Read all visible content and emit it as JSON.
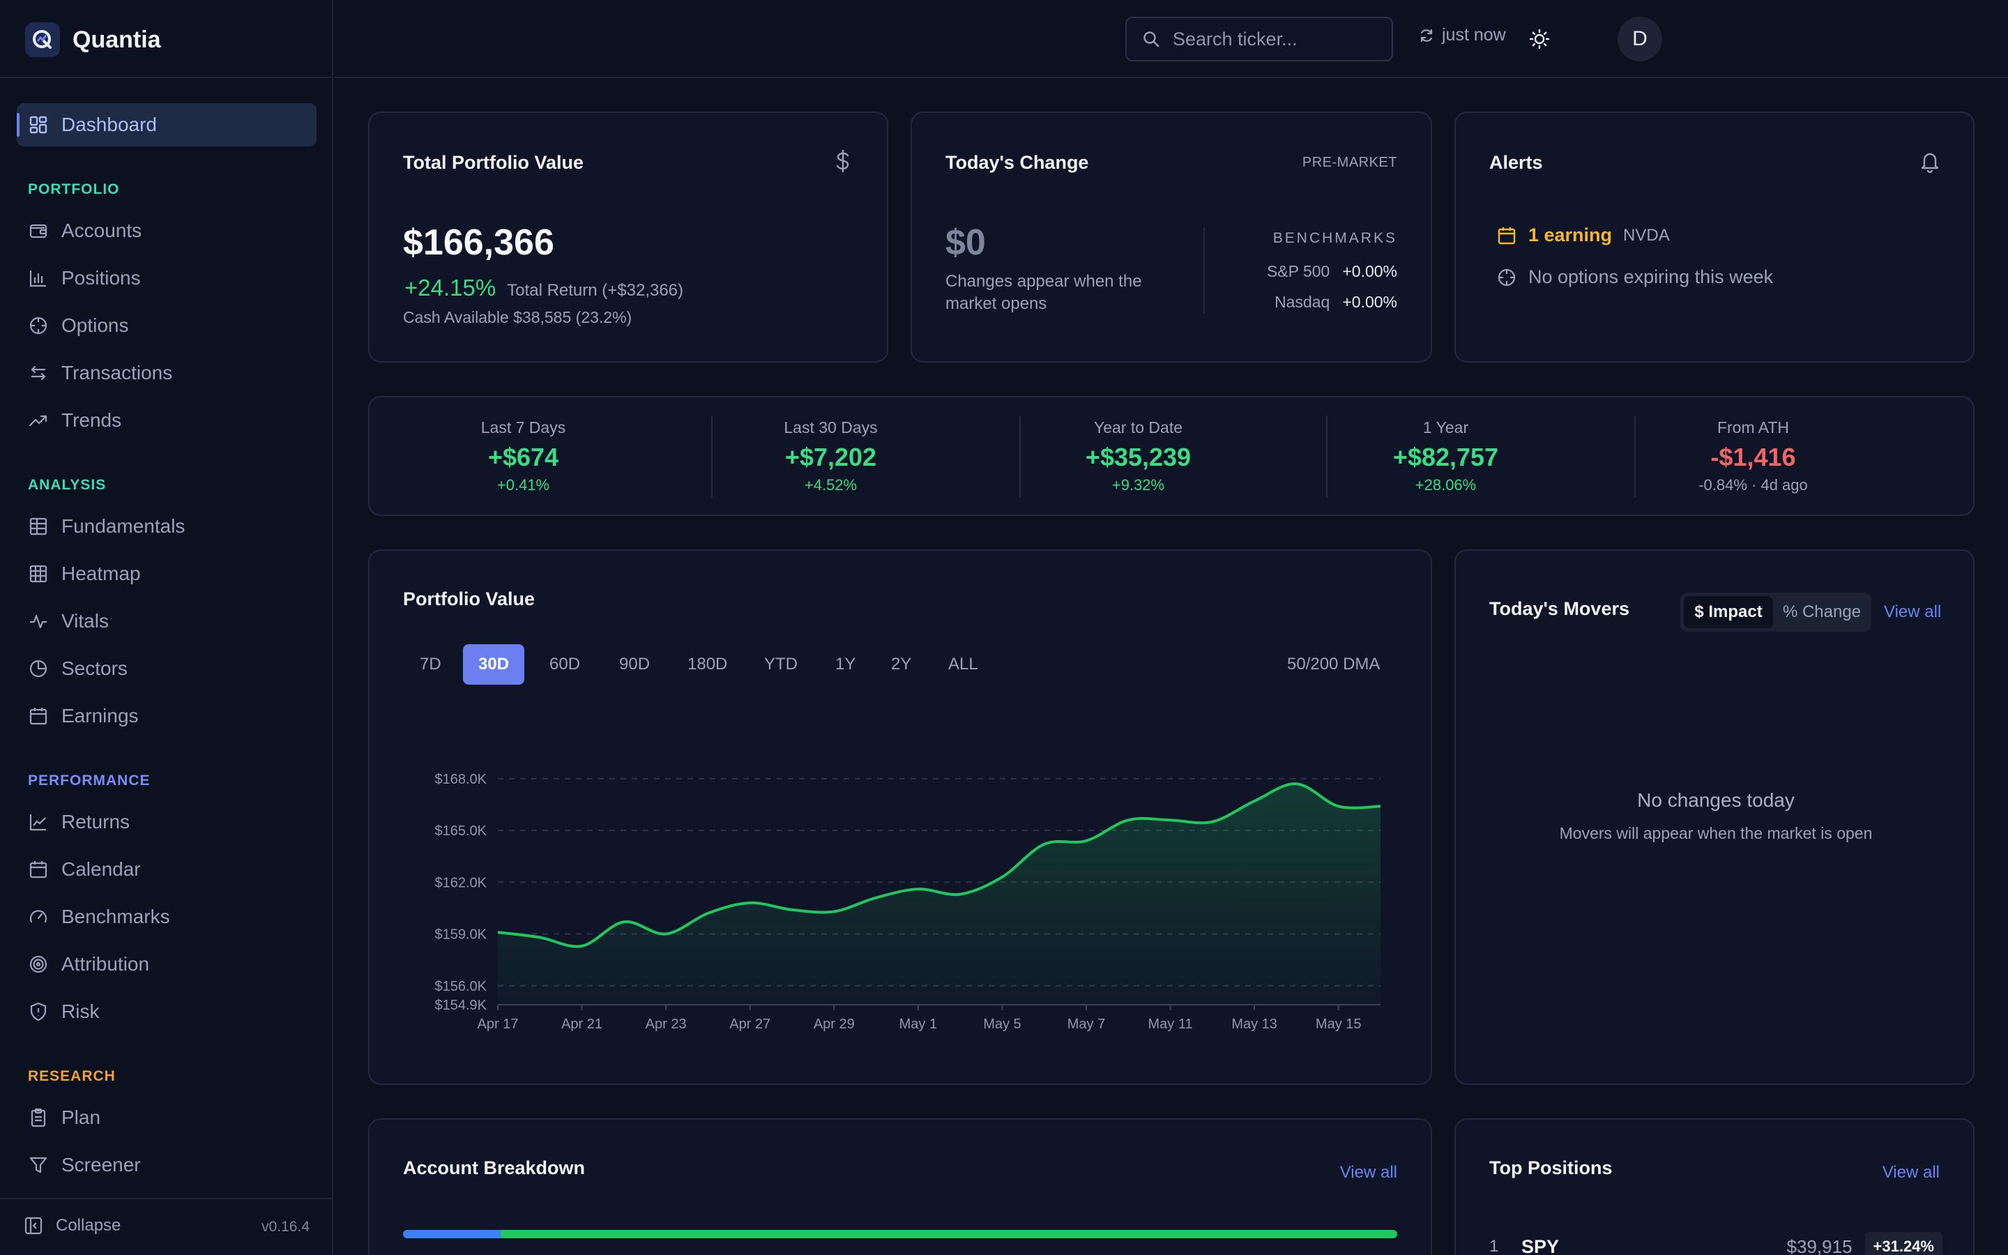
{
  "app": {
    "name": "Quantia",
    "version": "v0.16.4"
  },
  "sidebar": {
    "dashboard": "Dashboard",
    "sections": {
      "portfolio": {
        "title": "PORTFOLIO",
        "color": "#3ddcb4",
        "items": [
          "Accounts",
          "Positions",
          "Options",
          "Transactions",
          "Trends"
        ]
      },
      "analysis": {
        "title": "ANALYSIS",
        "color": "#3ddcb4",
        "items": [
          "Fundamentals",
          "Heatmap",
          "Vitals",
          "Sectors",
          "Earnings"
        ]
      },
      "performance": {
        "title": "PERFORMANCE",
        "color": "#7c8cf5",
        "items": [
          "Returns",
          "Calendar",
          "Benchmarks",
          "Attribution",
          "Risk"
        ]
      },
      "research": {
        "title": "RESEARCH",
        "color": "#f0a13a",
        "items": [
          "Plan",
          "Screener"
        ]
      }
    },
    "collapse": "Collapse"
  },
  "topbar": {
    "search_placeholder": "Search ticker...",
    "refresh": "just now",
    "avatar": "D"
  },
  "total_portfolio": {
    "title": "Total Portfolio Value",
    "value": "$166,366",
    "return_pct": "+24.15%",
    "return_text": "Total Return (+$32,366)",
    "cash": "Cash Available $38,585 (23.2%)"
  },
  "todays_change": {
    "title": "Today's Change",
    "badge": "PRE-MARKET",
    "value": "$0",
    "note_line1": "Changes appear when the",
    "note_line2": "market opens",
    "benchmarks_title": "BENCHMARKS",
    "benchmarks": [
      {
        "name": "S&P 500",
        "value": "+0.00%"
      },
      {
        "name": "Nasdaq",
        "value": "+0.00%"
      }
    ]
  },
  "alerts": {
    "title": "Alerts",
    "earning": "1 earning",
    "earning_ticker": "NVDA",
    "options": "No options expiring this week"
  },
  "performance_strip": [
    {
      "label": "Last 7 Days",
      "value": "+$674",
      "sub": "+0.41%",
      "tone": "green"
    },
    {
      "label": "Last 30 Days",
      "value": "+$7,202",
      "sub": "+4.52%",
      "tone": "green"
    },
    {
      "label": "Year to Date",
      "value": "+$35,239",
      "sub": "+9.32%",
      "tone": "green"
    },
    {
      "label": "1 Year",
      "value": "+$82,757",
      "sub": "+28.06%",
      "tone": "green"
    },
    {
      "label": "From ATH",
      "value": "-$1,416",
      "sub": "-0.84% · 4d ago",
      "tone": "red"
    }
  ],
  "portfolio_chart": {
    "title": "Portfolio Value",
    "ranges": [
      "7D",
      "30D",
      "60D",
      "90D",
      "180D",
      "YTD",
      "1Y",
      "2Y",
      "ALL"
    ],
    "active_range": "30D",
    "dma_label": "50/200 DMA"
  },
  "chart_data": {
    "type": "area",
    "title": "Portfolio Value",
    "line_color": "#22c55e",
    "ylim": [
      154.9,
      168.8
    ],
    "y_unit": "$K",
    "y_ticks": [
      {
        "value": 168.0,
        "label": "$168.0K"
      },
      {
        "value": 165.0,
        "label": "$165.0K"
      },
      {
        "value": 162.0,
        "label": "$162.0K"
      },
      {
        "value": 159.0,
        "label": "$159.0K"
      },
      {
        "value": 156.0,
        "label": "$156.0K"
      },
      {
        "value": 154.9,
        "label": "$154.9K"
      }
    ],
    "x_tick_labels": [
      "Apr 17",
      "Apr 21",
      "Apr 23",
      "Apr 27",
      "Apr 29",
      "May 1",
      "May 5",
      "May 7",
      "May 11",
      "May 13",
      "May 15"
    ],
    "x_tick_index": [
      0,
      2,
      4,
      6,
      8,
      10,
      12,
      14,
      16,
      18,
      20
    ],
    "series": [
      {
        "values": [
          159.1,
          158.8,
          158.3,
          159.7,
          159.0,
          160.2,
          160.8,
          160.4,
          160.3,
          161.1,
          161.6,
          161.3,
          162.3,
          164.2,
          164.4,
          165.6,
          165.6,
          165.5,
          166.7,
          167.7,
          166.4,
          166.4
        ]
      }
    ]
  },
  "movers": {
    "title": "Today's Movers",
    "toggle": [
      "$ Impact",
      "% Change"
    ],
    "view_all": "View all",
    "empty_title": "No changes today",
    "empty_sub": "Movers will appear when the market is open"
  },
  "account_breakdown": {
    "title": "Account Breakdown",
    "view_all": "View all",
    "segments": [
      {
        "fraction": 0.098,
        "color": "#3b82f6"
      },
      {
        "fraction": 0.902,
        "color": "#22c55e"
      }
    ]
  },
  "top_positions": {
    "title": "Top Positions",
    "view_all": "View all",
    "rows": [
      {
        "rank": "1",
        "ticker": "SPY",
        "value": "$39,915",
        "change": "+31.24%"
      }
    ]
  }
}
